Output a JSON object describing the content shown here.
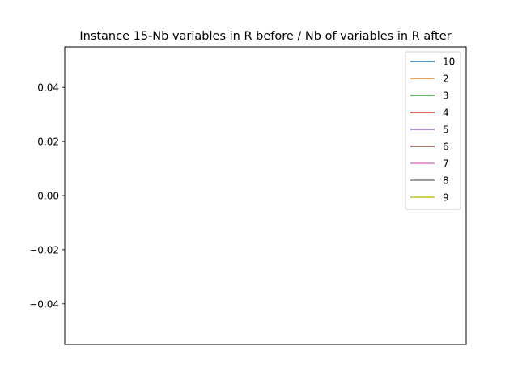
{
  "chart_data": {
    "type": "line",
    "title": "Instance 15-Nb variables in R before / Nb of variables in R after",
    "xlabel": "",
    "ylabel": "",
    "ylim": [
      -0.055,
      0.055
    ],
    "yticks": [
      0.04,
      0.02,
      0.0,
      -0.02,
      -0.04
    ],
    "ytick_labels": [
      "0.04",
      "0.02",
      "0.00",
      "−0.02",
      "−0.04"
    ],
    "xticks": [],
    "grid": false,
    "legend_position": "top-right",
    "series": [
      {
        "name": "10",
        "color": "#1f77b4",
        "values": []
      },
      {
        "name": "2",
        "color": "#ff7f0e",
        "values": []
      },
      {
        "name": "3",
        "color": "#2ca02c",
        "values": []
      },
      {
        "name": "4",
        "color": "#d62728",
        "values": []
      },
      {
        "name": "5",
        "color": "#9467bd",
        "values": []
      },
      {
        "name": "6",
        "color": "#8c564b",
        "values": []
      },
      {
        "name": "7",
        "color": "#e377c2",
        "values": []
      },
      {
        "name": "8",
        "color": "#7f7f7f",
        "values": []
      },
      {
        "name": "9",
        "color": "#bcbd22",
        "values": []
      }
    ]
  }
}
